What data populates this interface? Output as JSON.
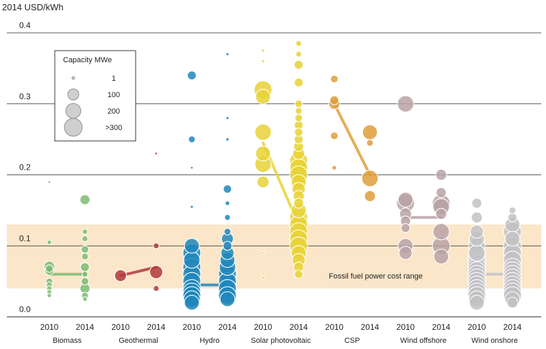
{
  "chart_data": {
    "type": "scatter",
    "ylabel": "2014 USD/kWh",
    "ylim": [
      0.0,
      0.4
    ],
    "yticks": [
      "0.4",
      "0.3",
      "0.2",
      "0.1",
      "0.0"
    ],
    "band": {
      "label": "Fossil fuel power cost range",
      "range": [
        0.04,
        0.13
      ],
      "color": "#fbe6c9"
    },
    "legend": {
      "title": "Capacity MWe",
      "position": "top-left",
      "entries": [
        {
          "label": "1",
          "mw": 1
        },
        {
          "label": "100",
          "mw": 100
        },
        {
          "label": "200",
          "mw": 200
        },
        {
          "label": ">300",
          "mw": 300
        }
      ]
    },
    "groups": [
      {
        "name": "Biomass",
        "color": "#7dbb72",
        "average": {
          "2010": 0.06,
          "2014": 0.06
        },
        "points": {
          "2010": [
            [
              0.071,
              90
            ],
            [
              0.065,
              60
            ],
            [
              0.068,
              40
            ],
            [
              0.105,
              10
            ],
            [
              0.05,
              30
            ],
            [
              0.045,
              20
            ],
            [
              0.04,
              15
            ],
            [
              0.035,
              10
            ],
            [
              0.03,
              8
            ],
            [
              0.19,
              1
            ]
          ],
          "2014": [
            [
              0.165,
              80
            ],
            [
              0.12,
              15
            ],
            [
              0.11,
              20
            ],
            [
              0.095,
              40
            ],
            [
              0.085,
              30
            ],
            [
              0.07,
              60
            ],
            [
              0.06,
              20
            ],
            [
              0.05,
              40
            ],
            [
              0.04,
              80
            ],
            [
              0.03,
              30
            ],
            [
              0.025,
              10
            ]
          ]
        }
      },
      {
        "name": "Geothermal",
        "color": "#b0393c",
        "average": {
          "2010": 0.058,
          "2014": 0.07
        },
        "points": {
          "2010": [
            [
              0.058,
              120
            ]
          ],
          "2014": [
            [
              0.063,
              150
            ],
            [
              0.1,
              20
            ],
            [
              0.04,
              20
            ],
            [
              0.23,
              1
            ]
          ]
        }
      },
      {
        "name": "Hydro",
        "color": "#1f86bb",
        "average": {
          "2010": 0.045,
          "2014": 0.045
        },
        "points": {
          "2010": [
            [
              0.34,
              60
            ],
            [
              0.25,
              30
            ],
            [
              0.155,
              2
            ],
            [
              0.21,
              1
            ],
            [
              0.1,
              200
            ],
            [
              0.09,
              300
            ],
            [
              0.08,
              250
            ],
            [
              0.07,
              300
            ],
            [
              0.06,
              300
            ],
            [
              0.05,
              300
            ],
            [
              0.04,
              300
            ],
            [
              0.035,
              300
            ],
            [
              0.03,
              300
            ],
            [
              0.025,
              250
            ],
            [
              0.02,
              200
            ]
          ],
          "2014": [
            [
              0.37,
              2
            ],
            [
              0.28,
              2
            ],
            [
              0.25,
              3
            ],
            [
              0.18,
              50
            ],
            [
              0.16,
              10
            ],
            [
              0.14,
              20
            ],
            [
              0.12,
              30
            ],
            [
              0.11,
              120
            ],
            [
              0.1,
              60
            ],
            [
              0.09,
              150
            ],
            [
              0.08,
              200
            ],
            [
              0.07,
              250
            ],
            [
              0.06,
              300
            ],
            [
              0.05,
              300
            ],
            [
              0.04,
              300
            ],
            [
              0.03,
              300
            ],
            [
              0.025,
              200
            ]
          ]
        }
      },
      {
        "name": "Solar photovoltaic",
        "color": "#e8d236",
        "average": {
          "2010": 0.245,
          "2014": 0.13
        },
        "points": {
          "2010": [
            [
              0.375,
              2
            ],
            [
              0.36,
              2
            ],
            [
              0.32,
              300
            ],
            [
              0.31,
              200
            ],
            [
              0.26,
              250
            ],
            [
              0.23,
              200
            ],
            [
              0.215,
              250
            ],
            [
              0.19,
              120
            ],
            [
              0.09,
              1
            ],
            [
              0.055,
              2
            ]
          ],
          "2014": [
            [
              0.385,
              20
            ],
            [
              0.37,
              20
            ],
            [
              0.355,
              60
            ],
            [
              0.33,
              60
            ],
            [
              0.3,
              40
            ],
            [
              0.29,
              30
            ],
            [
              0.28,
              40
            ],
            [
              0.27,
              60
            ],
            [
              0.26,
              50
            ],
            [
              0.25,
              60
            ],
            [
              0.24,
              80
            ],
            [
              0.23,
              120
            ],
            [
              0.22,
              300
            ],
            [
              0.21,
              300
            ],
            [
              0.2,
              300
            ],
            [
              0.19,
              200
            ],
            [
              0.18,
              150
            ],
            [
              0.17,
              100
            ],
            [
              0.16,
              80
            ],
            [
              0.15,
              200
            ],
            [
              0.14,
              300
            ],
            [
              0.13,
              300
            ],
            [
              0.12,
              300
            ],
            [
              0.11,
              300
            ],
            [
              0.1,
              300
            ],
            [
              0.09,
              200
            ],
            [
              0.08,
              150
            ],
            [
              0.07,
              80
            ],
            [
              0.06,
              50
            ]
          ]
        }
      },
      {
        "name": "CSP",
        "color": "#df9d3b",
        "average": {
          "2010": 0.3,
          "2014": 0.2
        },
        "points": {
          "2010": [
            [
              0.335,
              40
            ],
            [
              0.305,
              60
            ],
            [
              0.3,
              100
            ],
            [
              0.255,
              40
            ],
            [
              0.21,
              10
            ]
          ],
          "2014": [
            [
              0.26,
              200
            ],
            [
              0.245,
              30
            ],
            [
              0.195,
              250
            ],
            [
              0.17,
              100
            ]
          ]
        }
      },
      {
        "name": "Wind offshore",
        "color": "#b8a2a6",
        "average": {
          "2010": 0.14,
          "2014": 0.14
        },
        "points": {
          "2010": [
            [
              0.3,
              250
            ],
            [
              0.165,
              200
            ],
            [
              0.16,
              300
            ],
            [
              0.145,
              120
            ],
            [
              0.135,
              80
            ],
            [
              0.125,
              60
            ],
            [
              0.1,
              200
            ],
            [
              0.09,
              150
            ]
          ],
          "2014": [
            [
              0.2,
              100
            ],
            [
              0.175,
              80
            ],
            [
              0.16,
              300
            ],
            [
              0.155,
              250
            ],
            [
              0.145,
              100
            ],
            [
              0.12,
              250
            ],
            [
              0.1,
              300
            ],
            [
              0.085,
              200
            ]
          ]
        }
      },
      {
        "name": "Wind onshore",
        "color": "#c2c2c4",
        "average": {
          "2010": 0.06,
          "2014": 0.06
        },
        "points": {
          "2010": [
            [
              0.16,
              80
            ],
            [
              0.14,
              100
            ],
            [
              0.12,
              150
            ],
            [
              0.11,
              200
            ],
            [
              0.1,
              250
            ],
            [
              0.09,
              250
            ],
            [
              0.085,
              300
            ],
            [
              0.08,
              300
            ],
            [
              0.075,
              300
            ],
            [
              0.07,
              300
            ],
            [
              0.065,
              300
            ],
            [
              0.06,
              300
            ],
            [
              0.055,
              300
            ],
            [
              0.05,
              300
            ],
            [
              0.045,
              300
            ],
            [
              0.04,
              300
            ],
            [
              0.035,
              300
            ],
            [
              0.03,
              300
            ],
            [
              0.025,
              250
            ],
            [
              0.02,
              200
            ]
          ],
          "2014": [
            [
              0.15,
              30
            ],
            [
              0.14,
              60
            ],
            [
              0.13,
              200
            ],
            [
              0.12,
              300
            ],
            [
              0.11,
              200
            ],
            [
              0.1,
              300
            ],
            [
              0.09,
              300
            ],
            [
              0.08,
              300
            ],
            [
              0.07,
              300
            ],
            [
              0.065,
              300
            ],
            [
              0.06,
              300
            ],
            [
              0.055,
              300
            ],
            [
              0.05,
              300
            ],
            [
              0.045,
              300
            ],
            [
              0.04,
              300
            ],
            [
              0.035,
              300
            ],
            [
              0.03,
              300
            ],
            [
              0.025,
              200
            ],
            [
              0.02,
              100
            ]
          ]
        }
      }
    ],
    "years": [
      "2010",
      "2014"
    ]
  }
}
